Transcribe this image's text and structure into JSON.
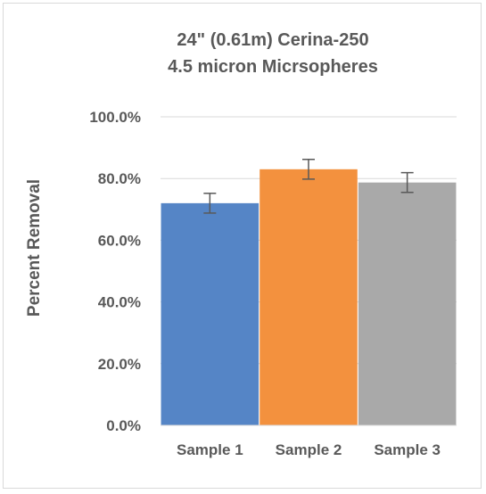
{
  "chart_data": {
    "type": "bar",
    "title_lines": [
      "24\" (0.61m) Cerina-250",
      "4.5 micron Micrsopheres"
    ],
    "xlabel": "",
    "ylabel": "Percent Removal",
    "categories": [
      "Sample 1",
      "Sample 2",
      "Sample 3"
    ],
    "values": [
      0.72,
      0.83,
      0.787
    ],
    "error": [
      0.032,
      0.032,
      0.032
    ],
    "bar_colors": [
      "#5585c6",
      "#f3913e",
      "#a9a9a9"
    ],
    "error_bar_color": "#595959",
    "ylim": [
      0,
      1.0
    ],
    "y_ticks": [
      0.0,
      0.2,
      0.4,
      0.6,
      0.8,
      1.0
    ],
    "y_tick_labels": [
      "0.0%",
      "20.0%",
      "40.0%",
      "60.0%",
      "80.0%",
      "100.0%"
    ],
    "grid": true,
    "gridline_color": "#d9d9d9",
    "legend": "none"
  }
}
